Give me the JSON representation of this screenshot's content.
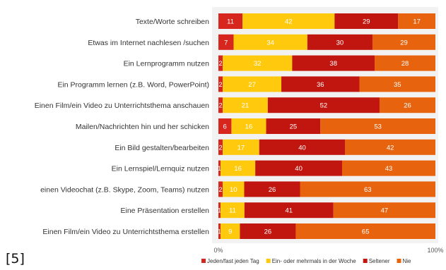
{
  "footnote": "[5]",
  "chart_data": {
    "type": "bar",
    "orientation": "horizontal",
    "stacked": true,
    "normalized": true,
    "title": "",
    "categories": [
      "Texte/Worte schreiben",
      "Etwas im Internet nachlesen /suchen",
      "Ein Lernprogramm nutzen",
      "Ein Programm lernen (z.B. Word, PowerPoint)",
      "Einen Film/ein Video zu Unterrichtsthema anschauen",
      "Mailen/Nachrichten hin und her schicken",
      "Ein Bild gestalten/bearbeiten",
      "Ein Lernspiel/Lernquiz nutzen",
      "einen Videochat (z.B. Skype, Zoom, Teams) nutzen",
      "Eine Präsentation erstellen",
      "Einen Film/ein Video zu Unterrichtsthema erstellen"
    ],
    "series": [
      {
        "name": "Jeden/fast jeden Tag",
        "color": "#d7261e",
        "text_color": "#ffffff",
        "values": [
          11,
          7,
          2,
          2,
          2,
          6,
          2,
          1,
          2,
          1,
          1
        ]
      },
      {
        "name": "Ein- oder mehrmals in der Woche",
        "color": "#ffc90e",
        "text_color": "#ffffff",
        "values": [
          42,
          34,
          32,
          27,
          21,
          16,
          17,
          16,
          10,
          11,
          9
        ]
      },
      {
        "name": "Seltener",
        "color": "#c0160f",
        "text_color": "#ffffff",
        "values": [
          29,
          30,
          38,
          36,
          52,
          25,
          40,
          40,
          26,
          41,
          26
        ]
      },
      {
        "name": "Nie",
        "color": "#e8630d",
        "text_color": "#ffffff",
        "values": [
          17,
          29,
          28,
          35,
          26,
          53,
          42,
          43,
          63,
          47,
          65
        ]
      }
    ],
    "x_ticks": [
      "0%",
      "100%"
    ],
    "xlim": [
      0,
      100
    ],
    "grid": false,
    "legend": "bottom"
  }
}
